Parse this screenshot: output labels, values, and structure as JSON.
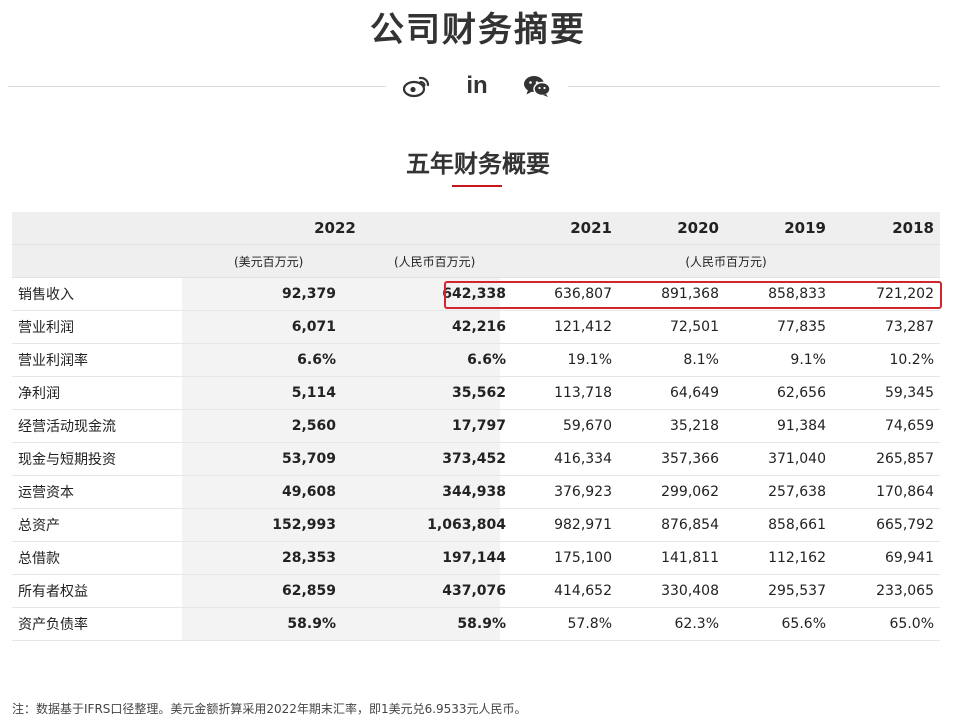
{
  "header": {
    "title": "公司财务摘要"
  },
  "social": {
    "icons": [
      "weibo-icon",
      "linkedin-icon",
      "wechat-icon"
    ],
    "linkedin_text": "in"
  },
  "section": {
    "title": "五年财务概要",
    "accent_color": "#c8161d"
  },
  "table": {
    "years": {
      "y2022": "2022",
      "y2021": "2021",
      "y2020": "2020",
      "y2019": "2019",
      "y2018": "2018"
    },
    "units": {
      "usd": "(美元百万元)",
      "cny": "(人民币百万元)",
      "cny_hist": "(人民币百万元)"
    },
    "rows": [
      {
        "label": "销售收入",
        "usd": "92,379",
        "cny": "642,338",
        "v2021": "636,807",
        "v2020": "891,368",
        "v2019": "858,833",
        "v2018": "721,202"
      },
      {
        "label": "营业利润",
        "usd": "6,071",
        "cny": "42,216",
        "v2021": "121,412",
        "v2020": "72,501",
        "v2019": "77,835",
        "v2018": "73,287"
      },
      {
        "label": "营业利润率",
        "usd": "6.6%",
        "cny": "6.6%",
        "v2021": "19.1%",
        "v2020": "8.1%",
        "v2019": "9.1%",
        "v2018": "10.2%"
      },
      {
        "label": "净利润",
        "usd": "5,114",
        "cny": "35,562",
        "v2021": "113,718",
        "v2020": "64,649",
        "v2019": "62,656",
        "v2018": "59,345"
      },
      {
        "label": "经营活动现金流",
        "usd": "2,560",
        "cny": "17,797",
        "v2021": "59,670",
        "v2020": "35,218",
        "v2019": "91,384",
        "v2018": "74,659"
      },
      {
        "label": "现金与短期投资",
        "usd": "53,709",
        "cny": "373,452",
        "v2021": "416,334",
        "v2020": "357,366",
        "v2019": "371,040",
        "v2018": "265,857"
      },
      {
        "label": "运营资本",
        "usd": "49,608",
        "cny": "344,938",
        "v2021": "376,923",
        "v2020": "299,062",
        "v2019": "257,638",
        "v2018": "170,864"
      },
      {
        "label": "总资产",
        "usd": "152,993",
        "cny": "1,063,804",
        "v2021": "982,971",
        "v2020": "876,854",
        "v2019": "858,661",
        "v2018": "665,792"
      },
      {
        "label": "总借款",
        "usd": "28,353",
        "cny": "197,144",
        "v2021": "175,100",
        "v2020": "141,811",
        "v2019": "112,162",
        "v2018": "69,941"
      },
      {
        "label": "所有者权益",
        "usd": "62,859",
        "cny": "437,076",
        "v2021": "414,652",
        "v2020": "330,408",
        "v2019": "295,537",
        "v2018": "233,065"
      },
      {
        "label": "资产负债率",
        "usd": "58.9%",
        "cny": "58.9%",
        "v2021": "57.8%",
        "v2020": "62.3%",
        "v2019": "65.6%",
        "v2018": "65.0%"
      }
    ],
    "highlight_color": "#d0262c"
  },
  "footnote": "注：数据基于IFRS口径整理。美元金额折算采用2022年期末汇率，即1美元兑6.9533元人民币。"
}
